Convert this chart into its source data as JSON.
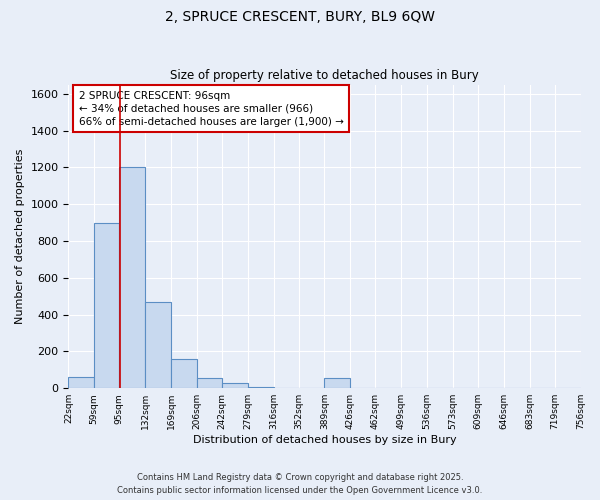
{
  "title_line1": "2, SPRUCE CRESCENT, BURY, BL9 6QW",
  "title_line2": "Size of property relative to detached houses in Bury",
  "xlabel": "Distribution of detached houses by size in Bury",
  "ylabel": "Number of detached properties",
  "bin_edges": [
    22,
    59,
    95,
    132,
    169,
    206,
    242,
    279,
    316,
    352,
    389,
    426,
    462,
    499,
    536,
    573,
    609,
    646,
    683,
    719,
    756
  ],
  "bar_heights": [
    60,
    900,
    1200,
    470,
    160,
    55,
    30,
    5,
    3,
    2,
    55,
    2,
    2,
    2,
    2,
    2,
    2,
    2,
    2,
    2
  ],
  "bar_color": "#c8d9ef",
  "bar_edge_color": "#5b8ec4",
  "red_line_x": 96,
  "annotation_text": "2 SPRUCE CRESCENT: 96sqm\n← 34% of detached houses are smaller (966)\n66% of semi-detached houses are larger (1,900) →",
  "annotation_box_color": "#ffffff",
  "annotation_border_color": "#cc0000",
  "ylim": [
    0,
    1650
  ],
  "xlim": [
    22,
    756
  ],
  "bg_color": "#e8eef8",
  "grid_color": "#ffffff",
  "footnote1": "Contains HM Land Registry data © Crown copyright and database right 2025.",
  "footnote2": "Contains public sector information licensed under the Open Government Licence v3.0."
}
